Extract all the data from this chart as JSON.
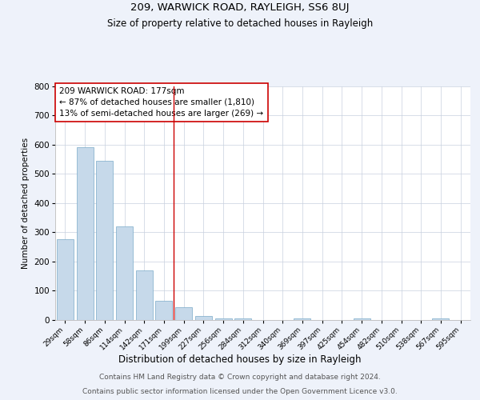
{
  "title": "209, WARWICK ROAD, RAYLEIGH, SS6 8UJ",
  "subtitle": "Size of property relative to detached houses in Rayleigh",
  "xlabel": "Distribution of detached houses by size in Rayleigh",
  "ylabel": "Number of detached properties",
  "footer_line1": "Contains HM Land Registry data © Crown copyright and database right 2024.",
  "footer_line2": "Contains public sector information licensed under the Open Government Licence v3.0.",
  "annotation_line1": "209 WARWICK ROAD: 177sqm",
  "annotation_line2": "← 87% of detached houses are smaller (1,810)",
  "annotation_line3": "13% of semi-detached houses are larger (269) →",
  "bin_labels": [
    "29sqm",
    "58sqm",
    "86sqm",
    "114sqm",
    "142sqm",
    "171sqm",
    "199sqm",
    "227sqm",
    "256sqm",
    "284sqm",
    "312sqm",
    "340sqm",
    "369sqm",
    "397sqm",
    "425sqm",
    "454sqm",
    "482sqm",
    "510sqm",
    "538sqm",
    "567sqm",
    "595sqm"
  ],
  "bar_heights": [
    275,
    590,
    545,
    320,
    170,
    65,
    45,
    15,
    5,
    5,
    0,
    0,
    5,
    0,
    0,
    5,
    0,
    0,
    0,
    5,
    0
  ],
  "bar_color": "#c6d9ea",
  "bar_edge_color": "#7aaac8",
  "vline_x": 5.5,
  "vline_color": "#cc0000",
  "ylim": [
    0,
    800
  ],
  "yticks": [
    0,
    100,
    200,
    300,
    400,
    500,
    600,
    700,
    800
  ],
  "background_color": "#eef2fa",
  "plot_bg_color": "#ffffff",
  "grid_color": "#c8d0df",
  "title_fontsize": 9.5,
  "subtitle_fontsize": 8.5,
  "annot_fontsize": 7.5,
  "tick_fontsize": 6.5,
  "ytick_fontsize": 7.5,
  "xlabel_fontsize": 8.5,
  "ylabel_fontsize": 7.5,
  "footer_fontsize": 6.5
}
